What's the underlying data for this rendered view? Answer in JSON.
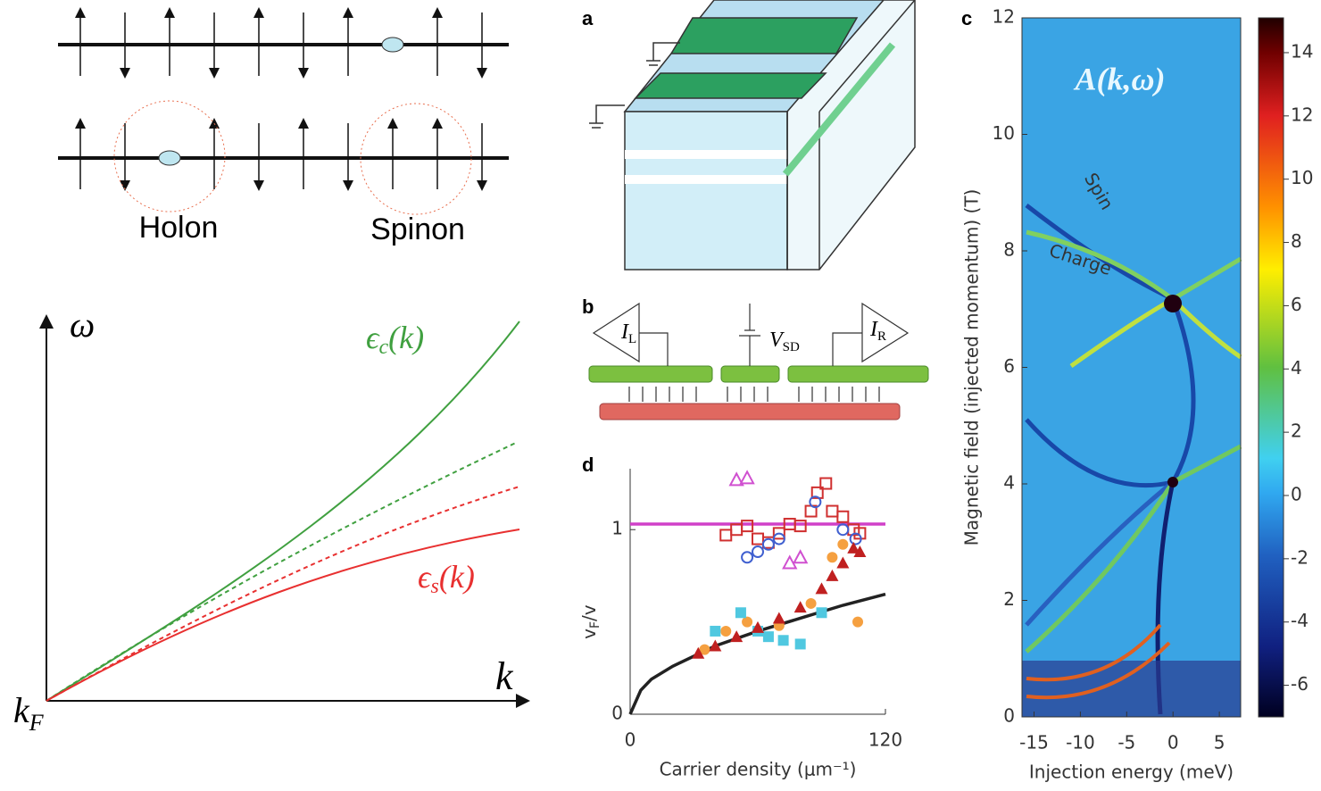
{
  "diagram": {
    "holon": "Holon",
    "spinon": "Spinon",
    "omega": "ω",
    "k": "k",
    "kF": {
      "text": "k",
      "sub": "F"
    },
    "eps_c": {
      "text": "ϵ",
      "sub": "c",
      "rest": "(k)"
    },
    "eps_s": {
      "text": "ϵ",
      "sub": "s",
      "rest": "(k)"
    },
    "panels": [
      "a",
      "b",
      "c",
      "d"
    ],
    "circuit": {
      "IL": {
        "text": "I",
        "sub": "L"
      },
      "VSD": {
        "text": "V",
        "sub": "SD"
      },
      "IR": {
        "text": "I",
        "sub": "R"
      }
    }
  },
  "chart_data": [
    {
      "type": "scatter",
      "x_label": "Carrier density (μm⁻¹)",
      "y_label": {
        "text": "v",
        "sub": "F",
        "rest": "/v"
      },
      "xlim": [
        0,
        120
      ],
      "ylim": [
        0,
        1.33
      ],
      "xticks": [
        0,
        120
      ],
      "yticks": [
        0,
        1
      ],
      "series": [
        {
          "marker": "line",
          "color": "#d040c8",
          "x": [
            0,
            120
          ],
          "values": [
            1.03,
            1.03
          ]
        },
        {
          "marker": "line",
          "color": "#222222",
          "x": [
            0,
            5,
            10,
            20,
            40,
            60,
            80,
            100,
            120
          ],
          "values": [
            0,
            0.13,
            0.19,
            0.26,
            0.37,
            0.45,
            0.52,
            0.59,
            0.65
          ]
        },
        {
          "marker": "square-open",
          "color": "#d03030",
          "x": [
            45,
            50,
            55,
            60,
            65,
            70,
            75,
            80,
            85,
            88,
            92,
            95,
            100,
            105,
            108
          ],
          "values": [
            0.97,
            1.0,
            1.02,
            0.95,
            0.93,
            0.98,
            1.03,
            1.02,
            1.1,
            1.2,
            1.25,
            1.1,
            1.07,
            1.0,
            0.98
          ]
        },
        {
          "marker": "circle-open",
          "color": "#4060d0",
          "x": [
            55,
            60,
            65,
            70,
            87,
            100,
            106
          ],
          "values": [
            0.85,
            0.88,
            0.92,
            0.95,
            1.15,
            1.0,
            0.95
          ]
        },
        {
          "marker": "triangle-open",
          "color": "#d050d0",
          "x": [
            50,
            55,
            75,
            80
          ],
          "values": [
            1.27,
            1.28,
            0.82,
            0.85
          ]
        },
        {
          "marker": "circle",
          "color": "#f5a040",
          "x": [
            35,
            45,
            55,
            70,
            85,
            95,
            100,
            107
          ],
          "values": [
            0.35,
            0.45,
            0.5,
            0.48,
            0.6,
            0.85,
            0.92,
            0.5
          ]
        },
        {
          "marker": "square",
          "color": "#50c8e0",
          "x": [
            40,
            52,
            60,
            65,
            72,
            80,
            90
          ],
          "values": [
            0.45,
            0.55,
            0.45,
            0.42,
            0.4,
            0.38,
            0.55
          ]
        },
        {
          "marker": "triangle",
          "color": "#c02020",
          "x": [
            32,
            40,
            50,
            60,
            70,
            80,
            90,
            95,
            100,
            105,
            108
          ],
          "values": [
            0.33,
            0.37,
            0.42,
            0.47,
            0.52,
            0.58,
            0.68,
            0.75,
            0.82,
            0.9,
            0.88
          ]
        }
      ]
    },
    {
      "type": "heatmap",
      "title": "A(k,ω)",
      "annotations": [
        "Spin",
        "Charge"
      ],
      "x_label": "Injection energy (meV)",
      "y_label": "Magnetic field (injected momentum) (T)",
      "xlim": [
        -16.3,
        7.3
      ],
      "ylim": [
        0,
        12
      ],
      "xticks": [
        -15,
        -10,
        -5,
        0,
        5
      ],
      "yticks": [
        0,
        2,
        4,
        6,
        8,
        10,
        12
      ],
      "colorbar": {
        "lim": [
          -7,
          15.1
        ],
        "ticks": [
          -6,
          -4,
          -2,
          0,
          2,
          4,
          6,
          8,
          10,
          12,
          14
        ]
      }
    }
  ]
}
